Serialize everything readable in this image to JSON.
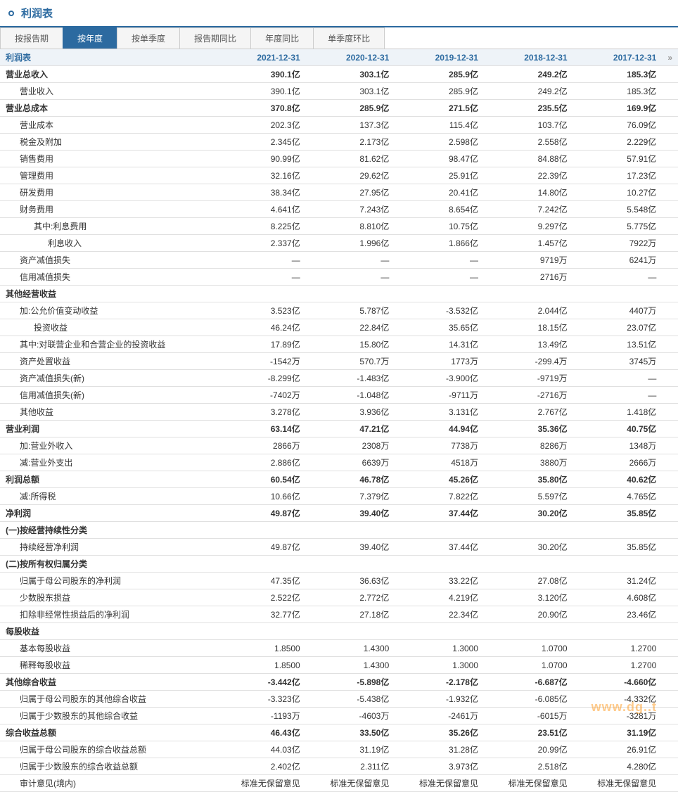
{
  "page": {
    "title": "利润表",
    "watermark": "www.dg..t"
  },
  "tabs": {
    "items": [
      {
        "label": "按报告期"
      },
      {
        "label": "按年度"
      },
      {
        "label": "按单季度"
      },
      {
        "label": "报告期同比"
      },
      {
        "label": "年度同比"
      },
      {
        "label": "单季度环比"
      }
    ],
    "activeIndex": 1
  },
  "table": {
    "header": {
      "firstCol": "利润表",
      "dates": [
        "2021-12-31",
        "2020-12-31",
        "2019-12-31",
        "2018-12-31",
        "2017-12-31"
      ],
      "scrollArrow": "»"
    },
    "rows": [
      {
        "label": "营业总收入",
        "cls": "bold",
        "vals": [
          "390.1亿",
          "303.1亿",
          "285.9亿",
          "249.2亿",
          "185.3亿"
        ]
      },
      {
        "label": "营业收入",
        "cls": "ind1",
        "vals": [
          "390.1亿",
          "303.1亿",
          "285.9亿",
          "249.2亿",
          "185.3亿"
        ]
      },
      {
        "label": "营业总成本",
        "cls": "bold",
        "vals": [
          "370.8亿",
          "285.9亿",
          "271.5亿",
          "235.5亿",
          "169.9亿"
        ]
      },
      {
        "label": "营业成本",
        "cls": "ind1",
        "vals": [
          "202.3亿",
          "137.3亿",
          "115.4亿",
          "103.7亿",
          "76.09亿"
        ]
      },
      {
        "label": "税金及附加",
        "cls": "ind1",
        "vals": [
          "2.345亿",
          "2.173亿",
          "2.598亿",
          "2.558亿",
          "2.229亿"
        ]
      },
      {
        "label": "销售费用",
        "cls": "ind1",
        "vals": [
          "90.99亿",
          "81.62亿",
          "98.47亿",
          "84.88亿",
          "57.91亿"
        ]
      },
      {
        "label": "管理费用",
        "cls": "ind1",
        "vals": [
          "32.16亿",
          "29.62亿",
          "25.91亿",
          "22.39亿",
          "17.23亿"
        ]
      },
      {
        "label": "研发费用",
        "cls": "ind1",
        "vals": [
          "38.34亿",
          "27.95亿",
          "20.41亿",
          "14.80亿",
          "10.27亿"
        ]
      },
      {
        "label": "财务费用",
        "cls": "ind1",
        "vals": [
          "4.641亿",
          "7.243亿",
          "8.654亿",
          "7.242亿",
          "5.548亿"
        ]
      },
      {
        "label": "其中:利息费用",
        "cls": "ind2",
        "vals": [
          "8.225亿",
          "8.810亿",
          "10.75亿",
          "9.297亿",
          "5.775亿"
        ]
      },
      {
        "label": "利息收入",
        "cls": "ind3",
        "vals": [
          "2.337亿",
          "1.996亿",
          "1.866亿",
          "1.457亿",
          "7922万"
        ]
      },
      {
        "label": "资产减值损失",
        "cls": "ind1",
        "vals": [
          "—",
          "—",
          "—",
          "9719万",
          "6241万"
        ]
      },
      {
        "label": "信用减值损失",
        "cls": "ind1",
        "vals": [
          "—",
          "—",
          "—",
          "2716万",
          "—"
        ]
      },
      {
        "label": "其他经营收益",
        "cls": "bold",
        "vals": [
          "",
          "",
          "",
          "",
          ""
        ]
      },
      {
        "label": "加:公允价值变动收益",
        "cls": "ind1",
        "vals": [
          "3.523亿",
          "5.787亿",
          "-3.532亿",
          "2.044亿",
          "4407万"
        ]
      },
      {
        "label": "投资收益",
        "cls": "ind2",
        "vals": [
          "46.24亿",
          "22.84亿",
          "35.65亿",
          "18.15亿",
          "23.07亿"
        ]
      },
      {
        "label": "其中:对联营企业和合营企业的投资收益",
        "cls": "ind1",
        "vals": [
          "17.89亿",
          "15.80亿",
          "14.31亿",
          "13.49亿",
          "13.51亿"
        ]
      },
      {
        "label": "资产处置收益",
        "cls": "ind1",
        "vals": [
          "-1542万",
          "570.7万",
          "1773万",
          "-299.4万",
          "3745万"
        ]
      },
      {
        "label": "资产减值损失(新)",
        "cls": "ind1",
        "vals": [
          "-8.299亿",
          "-1.483亿",
          "-3.900亿",
          "-9719万",
          "—"
        ]
      },
      {
        "label": "信用减值损失(新)",
        "cls": "ind1",
        "vals": [
          "-7402万",
          "-1.048亿",
          "-9711万",
          "-2716万",
          "—"
        ]
      },
      {
        "label": "其他收益",
        "cls": "ind1",
        "vals": [
          "3.278亿",
          "3.936亿",
          "3.131亿",
          "2.767亿",
          "1.418亿"
        ]
      },
      {
        "label": "营业利润",
        "cls": "bold",
        "vals": [
          "63.14亿",
          "47.21亿",
          "44.94亿",
          "35.36亿",
          "40.75亿"
        ]
      },
      {
        "label": "加:营业外收入",
        "cls": "ind1",
        "vals": [
          "2866万",
          "2308万",
          "7738万",
          "8286万",
          "1348万"
        ]
      },
      {
        "label": "减:营业外支出",
        "cls": "ind1",
        "vals": [
          "2.886亿",
          "6639万",
          "4518万",
          "3880万",
          "2666万"
        ]
      },
      {
        "label": "利润总额",
        "cls": "bold",
        "vals": [
          "60.54亿",
          "46.78亿",
          "45.26亿",
          "35.80亿",
          "40.62亿"
        ]
      },
      {
        "label": "减:所得税",
        "cls": "ind1",
        "vals": [
          "10.66亿",
          "7.379亿",
          "7.822亿",
          "5.597亿",
          "4.765亿"
        ]
      },
      {
        "label": "净利润",
        "cls": "bold",
        "vals": [
          "49.87亿",
          "39.40亿",
          "37.44亿",
          "30.20亿",
          "35.85亿"
        ]
      },
      {
        "label": "(一)按经营持续性分类",
        "cls": "bold",
        "vals": [
          "",
          "",
          "",
          "",
          ""
        ]
      },
      {
        "label": "持续经营净利润",
        "cls": "ind1",
        "vals": [
          "49.87亿",
          "39.40亿",
          "37.44亿",
          "30.20亿",
          "35.85亿"
        ]
      },
      {
        "label": "(二)按所有权归属分类",
        "cls": "bold",
        "vals": [
          "",
          "",
          "",
          "",
          ""
        ]
      },
      {
        "label": "归属于母公司股东的净利润",
        "cls": "ind1",
        "vals": [
          "47.35亿",
          "36.63亿",
          "33.22亿",
          "27.08亿",
          "31.24亿"
        ]
      },
      {
        "label": "少数股东损益",
        "cls": "ind1",
        "vals": [
          "2.522亿",
          "2.772亿",
          "4.219亿",
          "3.120亿",
          "4.608亿"
        ]
      },
      {
        "label": "扣除非经常性损益后的净利润",
        "cls": "ind1",
        "vals": [
          "32.77亿",
          "27.18亿",
          "22.34亿",
          "20.90亿",
          "23.46亿"
        ]
      },
      {
        "label": "每股收益",
        "cls": "bold",
        "vals": [
          "",
          "",
          "",
          "",
          ""
        ]
      },
      {
        "label": "基本每股收益",
        "cls": "ind1",
        "vals": [
          "1.8500",
          "1.4300",
          "1.3000",
          "1.0700",
          "1.2700"
        ]
      },
      {
        "label": "稀释每股收益",
        "cls": "ind1",
        "vals": [
          "1.8500",
          "1.4300",
          "1.3000",
          "1.0700",
          "1.2700"
        ]
      },
      {
        "label": "其他综合收益",
        "cls": "bold",
        "vals": [
          "-3.442亿",
          "-5.898亿",
          "-2.178亿",
          "-6.687亿",
          "-4.660亿"
        ]
      },
      {
        "label": "归属于母公司股东的其他综合收益",
        "cls": "ind1",
        "vals": [
          "-3.323亿",
          "-5.438亿",
          "-1.932亿",
          "-6.085亿",
          "-4.332亿"
        ]
      },
      {
        "label": "归属于少数股东的其他综合收益",
        "cls": "ind1",
        "vals": [
          "-1193万",
          "-4603万",
          "-2461万",
          "-6015万",
          "-3281万"
        ]
      },
      {
        "label": "综合收益总额",
        "cls": "bold",
        "vals": [
          "46.43亿",
          "33.50亿",
          "35.26亿",
          "23.51亿",
          "31.19亿"
        ]
      },
      {
        "label": "归属于母公司股东的综合收益总额",
        "cls": "ind1",
        "vals": [
          "44.03亿",
          "31.19亿",
          "31.28亿",
          "20.99亿",
          "26.91亿"
        ]
      },
      {
        "label": "归属于少数股东的综合收益总额",
        "cls": "ind1",
        "vals": [
          "2.402亿",
          "2.311亿",
          "3.973亿",
          "2.518亿",
          "4.280亿"
        ]
      },
      {
        "label": "审计意见(境内)",
        "cls": "ind1",
        "vals": [
          "标准无保留意见",
          "标准无保留意见",
          "标准无保留意见",
          "标准无保留意见",
          "标准无保留意见"
        ]
      }
    ]
  },
  "colors": {
    "accent": "#2c6aa0",
    "headerBg": "#eef3f8",
    "border": "#e0e0e0",
    "watermark": "#ff8c00"
  }
}
